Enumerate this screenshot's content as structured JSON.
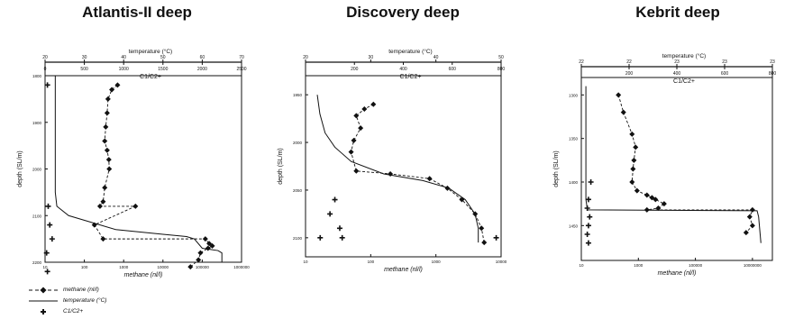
{
  "chart_data": [
    {
      "type": "line",
      "title": "Atlantis-II deep",
      "top_axis_label": "temperature (°C)",
      "top_axis_ticks": [
        "20",
        "30",
        "40",
        "50",
        "60",
        "70"
      ],
      "top_axis_range": [
        20,
        70
      ],
      "mid_axis_label": "C1/C2+",
      "mid_axis_ticks": [
        "0",
        "500",
        "1000",
        "1500",
        "2000",
        "2500"
      ],
      "mid_axis_range": [
        0,
        2500
      ],
      "xlabel": "methane (nl/l)",
      "x_scale": "log",
      "x_ticks": [
        "10",
        "100",
        "1000",
        "10000",
        "100000",
        "1000000"
      ],
      "x_range": [
        10,
        1000000
      ],
      "ylabel": "depth (SL/m)",
      "y_ticks": [
        "1800",
        "1900",
        "2000",
        "2100",
        "2200"
      ],
      "y_range": [
        1800,
        2200
      ],
      "series": [
        {
          "name": "methane (nl/l)",
          "style": "dashed-diamond",
          "axis": "methane",
          "points": [
            [
              700,
              1820
            ],
            [
              500,
              1830
            ],
            [
              400,
              1850
            ],
            [
              380,
              1880
            ],
            [
              350,
              1910
            ],
            [
              330,
              1940
            ],
            [
              380,
              1960
            ],
            [
              420,
              1980
            ],
            [
              430,
              2000
            ],
            [
              330,
              2040
            ],
            [
              300,
              2070
            ],
            [
              250,
              2080
            ],
            [
              2000,
              2080
            ],
            [
              180,
              2120
            ],
            [
              300,
              2150
            ],
            [
              120000,
              2150
            ],
            [
              150000,
              2160
            ],
            [
              180000,
              2165
            ],
            [
              140000,
              2170
            ],
            [
              90000,
              2180
            ],
            [
              80000,
              2195
            ],
            [
              50000,
              2210
            ]
          ]
        },
        {
          "name": "temperature (°C)",
          "style": "solid",
          "axis": "temperature",
          "points": [
            [
              22.6,
              1800
            ],
            [
              22.6,
              2050
            ],
            [
              23.0,
              2080
            ],
            [
              26,
              2100
            ],
            [
              38,
              2130
            ],
            [
              50,
              2140
            ],
            [
              56,
              2145
            ],
            [
              58,
              2150
            ],
            [
              60,
              2170
            ],
            [
              64,
              2175
            ],
            [
              65,
              2180
            ],
            [
              65,
              2200
            ]
          ]
        },
        {
          "name": "C1/C2+",
          "style": "cross",
          "axis": "ratio",
          "points": [
            [
              30,
              1820
            ],
            [
              40,
              2080
            ],
            [
              60,
              2120
            ],
            [
              90,
              2150
            ],
            [
              20,
              2180
            ],
            [
              30,
              2220
            ]
          ]
        }
      ]
    },
    {
      "type": "line",
      "title": "Discovery deep",
      "top_axis_label": "temperature (°C)",
      "top_axis_ticks": [
        "20",
        "30",
        "40",
        "50"
      ],
      "top_axis_range": [
        20,
        50
      ],
      "mid_axis_label": "C1/C2+",
      "mid_axis_ticks": [
        "200",
        "400",
        "600",
        "800"
      ],
      "mid_axis_range": [
        0,
        800
      ],
      "xlabel": "methane (nl/l)",
      "x_scale": "log",
      "x_ticks": [
        "10",
        "100",
        "1000",
        "10000"
      ],
      "x_range": [
        10,
        10000
      ],
      "ylabel": "depth (SL/m)",
      "y_ticks": [
        "1950",
        "2000",
        "2050",
        "2100"
      ],
      "y_range": [
        1930,
        2120
      ],
      "series": [
        {
          "name": "methane (nl/l)",
          "style": "dashed-diamond",
          "axis": "methane",
          "points": [
            [
              110,
              1960
            ],
            [
              80,
              1965
            ],
            [
              60,
              1972
            ],
            [
              70,
              1985
            ],
            [
              55,
              1998
            ],
            [
              50,
              2010
            ],
            [
              60,
              2030
            ],
            [
              200,
              2033
            ],
            [
              800,
              2038
            ],
            [
              1500,
              2048
            ],
            [
              2500,
              2060
            ],
            [
              4000,
              2075
            ],
            [
              5000,
              2090
            ],
            [
              5500,
              2105
            ]
          ]
        },
        {
          "name": "temperature (°C)",
          "style": "solid",
          "axis": "temperature",
          "points": [
            [
              21.8,
              1950
            ],
            [
              22.2,
              1970
            ],
            [
              23.0,
              1990
            ],
            [
              24.5,
              2005
            ],
            [
              27,
              2020
            ],
            [
              32,
              2033
            ],
            [
              38,
              2040
            ],
            [
              42,
              2048
            ],
            [
              44.5,
              2060
            ],
            [
              46,
              2075
            ],
            [
              46.5,
              2090
            ],
            [
              46.5,
              2105
            ]
          ]
        },
        {
          "name": "C1/C2+",
          "style": "cross",
          "axis": "ratio",
          "points": [
            [
              120,
              2060
            ],
            [
              100,
              2075
            ],
            [
              140,
              2090
            ],
            [
              60,
              2100
            ],
            [
              150,
              2100
            ],
            [
              780,
              2100
            ]
          ]
        }
      ]
    },
    {
      "type": "line",
      "title": "Kebrit deep",
      "top_axis_label": "temperature (°C)",
      "top_axis_ticks": [
        "22",
        "22",
        "23",
        "23",
        "23"
      ],
      "top_axis_range": [
        21.5,
        24.0
      ],
      "mid_axis_label": "C1/C2+",
      "mid_axis_ticks": [
        "200",
        "400",
        "600",
        "800"
      ],
      "mid_axis_range": [
        0,
        800
      ],
      "xlabel": "methane (nl/l)",
      "x_scale": "log",
      "x_ticks": [
        "10",
        "1000",
        "100000",
        "10000000"
      ],
      "x_range": [
        10,
        50000000
      ],
      "ylabel": "depth (SL/m)",
      "y_ticks": [
        "1300",
        "1350",
        "1400",
        "1450"
      ],
      "y_range": [
        1280,
        1490
      ],
      "series": [
        {
          "name": "methane (nl/l)",
          "style": "dashed-diamond",
          "axis": "methane",
          "points": [
            [
              200,
              1300
            ],
            [
              300,
              1320
            ],
            [
              600,
              1345
            ],
            [
              800,
              1360
            ],
            [
              700,
              1375
            ],
            [
              650,
              1385
            ],
            [
              600,
              1400
            ],
            [
              900,
              1410
            ],
            [
              2000,
              1415
            ],
            [
              3000,
              1418
            ],
            [
              4000,
              1420
            ],
            [
              8000,
              1425
            ],
            [
              5000,
              1430
            ],
            [
              2000,
              1432
            ],
            [
              10000000,
              1432
            ],
            [
              8000000,
              1440
            ],
            [
              10000000,
              1450
            ],
            [
              6000000,
              1458
            ]
          ]
        },
        {
          "name": "temperature (°C)",
          "style": "solid",
          "axis": "temperature",
          "points": [
            [
              21.56,
              1290
            ],
            [
              21.56,
              1420
            ],
            [
              21.58,
              1432
            ],
            [
              23.8,
              1433
            ],
            [
              23.82,
              1440
            ],
            [
              23.85,
              1470
            ]
          ]
        },
        {
          "name": "C1/C2+",
          "style": "cross",
          "axis": "ratio",
          "points": [
            [
              40,
              1400
            ],
            [
              30,
              1420
            ],
            [
              25,
              1430
            ],
            [
              35,
              1440
            ],
            [
              30,
              1450
            ],
            [
              25,
              1460
            ],
            [
              30,
              1470
            ]
          ]
        }
      ]
    }
  ],
  "legend": {
    "items": [
      {
        "label": "methane (nl/l)",
        "style": "dashed-diamond"
      },
      {
        "label": "temperature (°C)",
        "style": "solid"
      },
      {
        "label": "C1/C2+",
        "style": "cross"
      }
    ]
  }
}
